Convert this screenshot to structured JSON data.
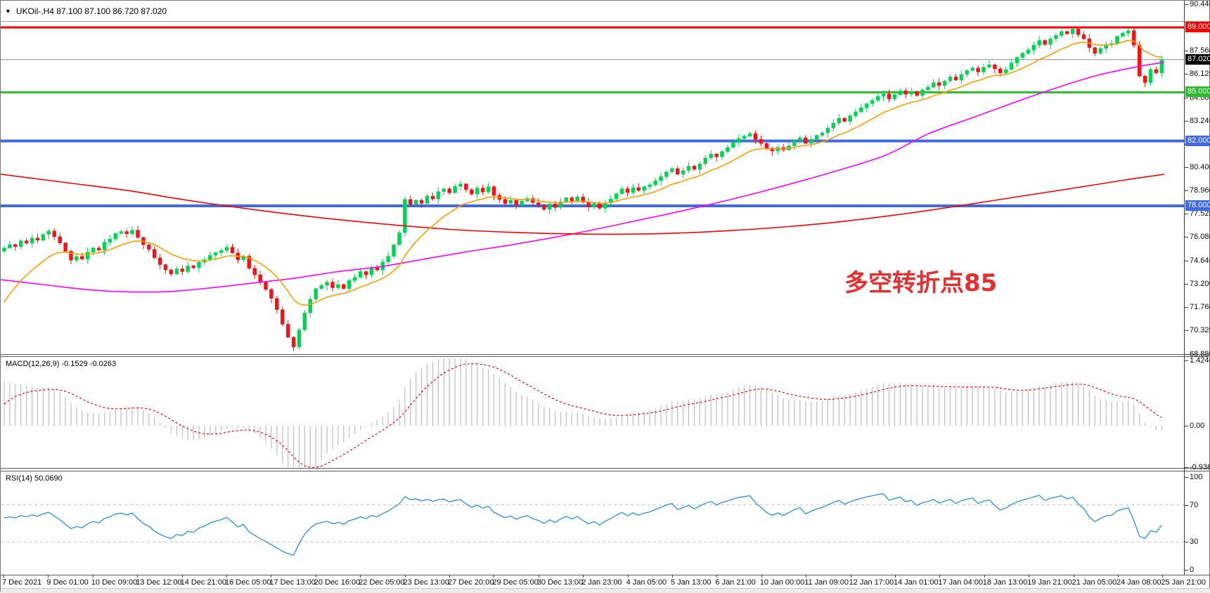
{
  "header": {
    "dropdown_icon": "▼",
    "symbol_info": "UKOil-,H4  87.100 87.100 86.720 87.020"
  },
  "annotation": {
    "text": "多空转折点85",
    "color": "#e62e2e"
  },
  "chart_data": {
    "type": "candlestick",
    "title": "UKOil-,H4",
    "timeframe": "H4",
    "ohlc_header": "87.100 87.100 86.720 87.020",
    "ylim": [
      68.5,
      90.9
    ],
    "grid": false,
    "price_axis_ticks": [
      "90.440",
      "87.560",
      "86.120",
      "84.680",
      "83.240",
      "81.800",
      "80.400",
      "78.960",
      "77.520",
      "76.080",
      "74.640",
      "73.200",
      "71.760",
      "70.320",
      "68.880"
    ],
    "price_axis_tick_values": [
      90.44,
      87.56,
      86.12,
      84.68,
      83.24,
      81.8,
      80.4,
      78.96,
      77.52,
      76.08,
      74.64,
      73.2,
      71.76,
      70.32,
      68.88
    ],
    "x_labels": [
      "7 Dec 2021",
      "9 Dec 01:00",
      "10 Dec 09:00",
      "13 Dec 12:00",
      "14 Dec 21:00",
      "16 Dec 05:00",
      "17 Dec 13:00",
      "20 Dec 16:00",
      "22 Dec 05:00",
      "23 Dec 13:00",
      "27 Dec 20:00",
      "29 Dec 05:00",
      "30 Dec 13:00",
      "2 Jan 23:00",
      "4 Jan 05:00",
      "5 Jan 13:00",
      "6 Jan 21:00",
      "10 Jan 00:00",
      "11 Jan 09:00",
      "12 Jan 17:00",
      "14 Jan 01:00",
      "17 Jan 04:00",
      "18 Jan 13:00",
      "19 Jan 21:00",
      "21 Jan 05:00",
      "24 Jan 08:00",
      "25 Jan 21:00"
    ],
    "bars_per_label": 8,
    "first_open": 75.2,
    "closes": [
      75.4,
      75.62,
      75.48,
      75.85,
      75.7,
      76.02,
      75.88,
      76.24,
      76.45,
      76.1,
      75.72,
      75.2,
      74.65,
      74.88,
      74.72,
      75.15,
      75.4,
      75.28,
      75.76,
      75.95,
      76.3,
      76.42,
      76.28,
      76.5,
      76.05,
      75.6,
      75.32,
      74.8,
      74.38,
      74.05,
      73.8,
      74.12,
      73.95,
      74.3,
      74.18,
      74.52,
      74.68,
      74.95,
      75.12,
      75.25,
      75.45,
      75.1,
      74.68,
      74.9,
      74.15,
      73.75,
      73.3,
      72.85,
      72.3,
      71.6,
      70.7,
      69.9,
      69.3,
      70.35,
      71.4,
      72.25,
      72.9,
      73.1,
      73.3,
      72.95,
      73.15,
      72.9,
      73.4,
      73.6,
      73.95,
      73.75,
      74.2,
      74.05,
      74.55,
      74.9,
      75.6,
      76.35,
      78.4,
      78.1,
      78.35,
      78.15,
      78.6,
      78.42,
      78.88,
      79.05,
      78.8,
      79.2,
      79.35,
      79.0,
      78.72,
      79.1,
      78.85,
      79.18,
      78.65,
      78.4,
      78.15,
      78.35,
      78.05,
      78.3,
      78.45,
      78.2,
      78.05,
      77.78,
      78.12,
      77.9,
      78.25,
      78.5,
      78.3,
      78.55,
      78.22,
      77.95,
      78.15,
      77.85,
      78.18,
      78.42,
      78.75,
      79.05,
      78.82,
      79.12,
      78.95,
      79.18,
      79.3,
      79.55,
      79.8,
      80.1,
      80.3,
      79.95,
      80.18,
      80.45,
      80.25,
      80.6,
      80.95,
      81.2,
      81.02,
      81.35,
      81.6,
      81.9,
      82.15,
      82.3,
      82.45,
      82.1,
      81.85,
      81.55,
      81.38,
      81.6,
      81.45,
      81.7,
      82.0,
      82.2,
      81.85,
      82.1,
      82.35,
      82.5,
      82.8,
      83.1,
      83.4,
      83.2,
      83.55,
      83.8,
      84.05,
      84.3,
      84.5,
      84.75,
      84.9,
      84.6,
      84.85,
      85.1,
      84.88,
      85.05,
      84.8,
      85.15,
      85.32,
      85.6,
      85.42,
      85.7,
      85.95,
      85.75,
      86.1,
      86.35,
      86.5,
      86.25,
      86.55,
      86.7,
      86.45,
      86.2,
      86.4,
      86.8,
      87.15,
      87.4,
      87.6,
      87.9,
      88.2,
      87.95,
      88.3,
      88.5,
      88.75,
      88.6,
      88.9,
      88.55,
      88.3,
      87.75,
      87.4,
      87.7,
      87.95,
      88.0,
      88.45,
      88.65,
      88.8,
      87.9,
      86.0,
      85.6,
      86.4,
      86.2,
      87.02
    ],
    "candle_up_color": "#00d455",
    "candle_down_color": "#f21414",
    "levels": [
      {
        "label": "89.000",
        "price": 89.0,
        "color": "#f40000",
        "line_width": 3
      },
      {
        "label": "85.000",
        "price": 85.0,
        "color": "#2db92d",
        "line_width": 3
      },
      {
        "label": "82.000",
        "price": 82.0,
        "color": "#4169e1",
        "line_width": 4
      },
      {
        "label": "78.000",
        "price": 78.0,
        "color": "#4169e1",
        "line_width": 4
      }
    ],
    "current_price": {
      "label": "87.020",
      "price": 87.02,
      "line_color": "#8c8c8c",
      "badge_bg": "#000000"
    },
    "moving_averages": {
      "fast": {
        "color": "#ff9d00",
        "period": 13,
        "seed": 71.5
      },
      "mid": {
        "color": "#ff00ff",
        "points": [
          [
            0,
            73.45
          ],
          [
            60,
            73.15
          ],
          [
            120,
            72.85
          ],
          [
            180,
            72.7
          ],
          [
            240,
            72.72
          ],
          [
            300,
            72.95
          ],
          [
            360,
            73.25
          ],
          [
            420,
            73.55
          ],
          [
            480,
            73.95
          ],
          [
            540,
            74.25
          ],
          [
            600,
            74.7
          ],
          [
            660,
            75.15
          ],
          [
            720,
            75.55
          ],
          [
            780,
            76.0
          ],
          [
            840,
            76.5
          ],
          [
            900,
            77.05
          ],
          [
            960,
            77.6
          ],
          [
            1020,
            78.2
          ],
          [
            1080,
            78.85
          ],
          [
            1140,
            79.55
          ],
          [
            1200,
            80.3
          ],
          [
            1260,
            81.15
          ],
          [
            1320,
            82.45
          ],
          [
            1380,
            83.4
          ],
          [
            1440,
            84.35
          ],
          [
            1500,
            85.25
          ],
          [
            1560,
            86.05
          ],
          [
            1620,
            86.6
          ],
          [
            1655,
            86.85
          ]
        ]
      },
      "slow": {
        "color": "#f40000",
        "points": [
          [
            0,
            79.95
          ],
          [
            90,
            79.45
          ],
          [
            180,
            78.95
          ],
          [
            250,
            78.45
          ],
          [
            320,
            78.0
          ],
          [
            400,
            77.55
          ],
          [
            480,
            77.15
          ],
          [
            560,
            76.82
          ],
          [
            640,
            76.55
          ],
          [
            720,
            76.38
          ],
          [
            800,
            76.28
          ],
          [
            880,
            76.25
          ],
          [
            960,
            76.32
          ],
          [
            1040,
            76.48
          ],
          [
            1120,
            76.72
          ],
          [
            1200,
            77.05
          ],
          [
            1280,
            77.48
          ],
          [
            1360,
            77.98
          ],
          [
            1440,
            78.52
          ],
          [
            1520,
            79.05
          ],
          [
            1600,
            79.6
          ],
          [
            1655,
            79.95
          ]
        ]
      }
    },
    "macd": {
      "label": "MACD(12,26,9) -0.1529 -0.0263",
      "fast": 12,
      "slow": 26,
      "signal": 9,
      "current_value": -0.1529,
      "current_signal": -0.0263,
      "axis_labels": [
        "1.4246",
        "0.00",
        "-0.9363"
      ],
      "axis_values": [
        1.4246,
        0,
        -0.9363
      ],
      "histogram_color": "#bdbdbd",
      "signal_color": "#f40000"
    },
    "rsi": {
      "label": "RSI(14) 50.0690",
      "period": 14,
      "current_value": 50.069,
      "axis_labels": [
        "100",
        "70",
        "30",
        "0"
      ],
      "axis_values": [
        100,
        70,
        30,
        0
      ],
      "level_lines": [
        70,
        30
      ],
      "line_color": "#2a8fdd",
      "level_color": "#c0c0c0"
    }
  }
}
